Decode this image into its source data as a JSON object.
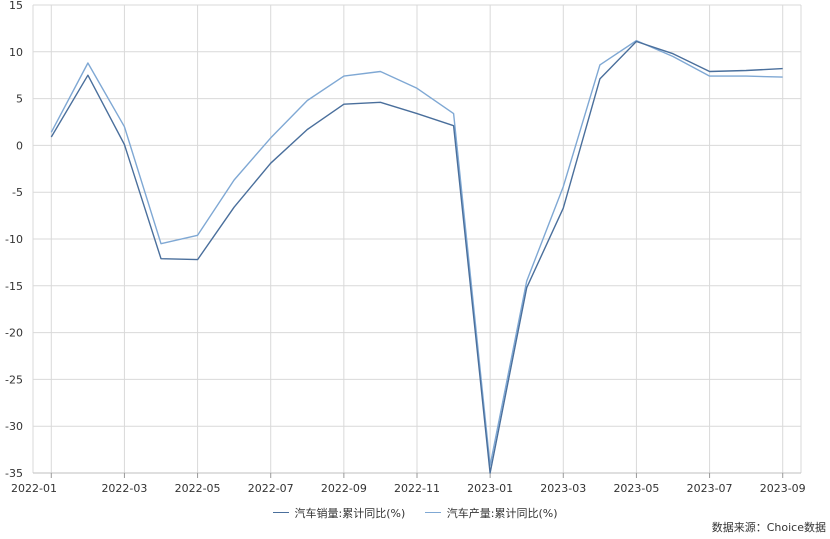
{
  "chart_data": {
    "type": "line",
    "x": [
      "2022-01",
      "2022-02",
      "2022-03",
      "2022-04",
      "2022-05",
      "2022-06",
      "2022-07",
      "2022-08",
      "2022-09",
      "2022-10",
      "2022-11",
      "2022-12",
      "2023-01",
      "2023-02",
      "2023-03",
      "2023-04",
      "2023-05",
      "2023-06",
      "2023-07",
      "2023-08",
      "2023-09"
    ],
    "xticks": [
      "2022-01",
      "2022-03",
      "2022-05",
      "2022-07",
      "2022-09",
      "2022-11",
      "2023-01",
      "2023-03",
      "2023-05",
      "2023-07",
      "2023-09"
    ],
    "ylim": [
      -35,
      15
    ],
    "yticks": [
      15,
      10,
      5,
      0,
      -5,
      -10,
      -15,
      -20,
      -25,
      -30,
      -35
    ],
    "grid": true,
    "legend_position": "bottom",
    "series": [
      {
        "name": "汽车销量:累计同比(%)",
        "color": "#4a6f9c",
        "values": [
          0.9,
          7.5,
          0.1,
          -12.1,
          -12.2,
          -6.6,
          -1.9,
          1.7,
          4.4,
          4.6,
          3.4,
          2.1,
          -35.0,
          -15.2,
          -6.7,
          7.1,
          11.1,
          9.8,
          7.9,
          8.0,
          8.2
        ]
      },
      {
        "name": "汽车产量:累计同比(%)",
        "color": "#7fa8d4",
        "values": [
          1.4,
          8.8,
          2.0,
          -10.5,
          -9.6,
          -3.7,
          0.8,
          4.8,
          7.4,
          7.9,
          6.1,
          3.4,
          -34.2,
          -14.5,
          -4.4,
          8.6,
          11.2,
          9.5,
          7.4,
          7.4,
          7.3
        ]
      }
    ]
  },
  "source": "数据来源：Choice数据"
}
